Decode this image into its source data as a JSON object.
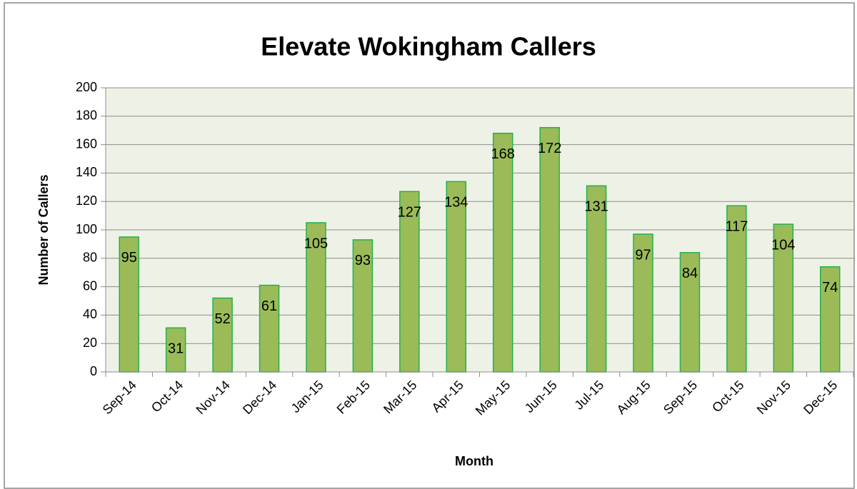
{
  "chart_data": {
    "type": "bar",
    "title": "Elevate Wokingham Callers",
    "x_label": "Month",
    "y_label": "Number of Callers",
    "categories": [
      "Sep-14",
      "Oct-14",
      "Nov-14",
      "Dec-14",
      "Jan-15",
      "Feb-15",
      "Mar-15",
      "Apr-15",
      "May-15",
      "Jun-15",
      "Jul-15",
      "Aug-15",
      "Sep-15",
      "Oct-15",
      "Nov-15",
      "Dec-15"
    ],
    "values": [
      95,
      31,
      52,
      61,
      105,
      93,
      127,
      134,
      168,
      172,
      131,
      97,
      84,
      117,
      104,
      74
    ],
    "color": "#9bbb59",
    "ylim": [
      0,
      200
    ],
    "yticks": [
      0,
      20,
      40,
      60,
      80,
      100,
      120,
      140,
      160,
      180,
      200
    ],
    "grid": true
  }
}
